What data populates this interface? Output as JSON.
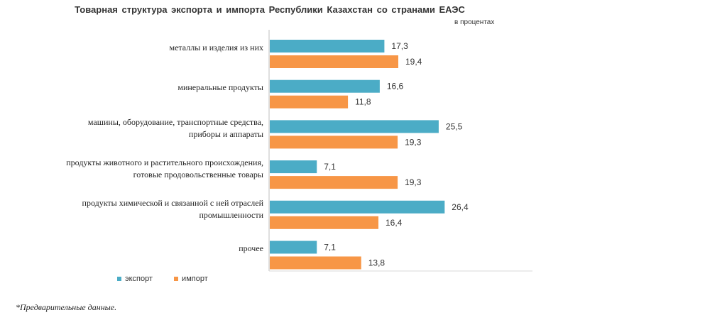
{
  "chart_data": {
    "type": "bar",
    "orientation": "horizontal",
    "title": "Товарная  структура  экспорта  и  импорта Республики Казахстан  со странами  ЕАЭС",
    "subtitle": "в процентах",
    "categories": [
      [
        "металлы и изделия из них"
      ],
      [
        "минеральные  продукты"
      ],
      [
        "машины, оборудование, транспортные  средства,",
        "приборы и аппараты"
      ],
      [
        "продукты животного и растительного  происхождения,",
        "готовые продовольственные товары"
      ],
      [
        "продукты химической и связанной с ней отраслей",
        "промышленности"
      ],
      [
        "прочее"
      ]
    ],
    "series": [
      {
        "name": "экспорт",
        "color": "#4bacc6",
        "values": [
          17.3,
          16.6,
          25.5,
          7.1,
          26.4,
          7.1
        ],
        "labels": [
          "17,3",
          "16,6",
          "25,5",
          "7,1",
          "26,4",
          "7,1"
        ]
      },
      {
        "name": "импорт",
        "color": "#f79646",
        "values": [
          19.4,
          11.8,
          19.3,
          19.3,
          16.4,
          13.8
        ],
        "labels": [
          "19,4",
          "11,8",
          "19,3",
          "19,3",
          "16,4",
          "13,8"
        ]
      }
    ],
    "xlim": [
      0,
      30
    ],
    "grid": false,
    "legend_position": "bottom-left"
  },
  "footnote": "*Предварительные данные."
}
